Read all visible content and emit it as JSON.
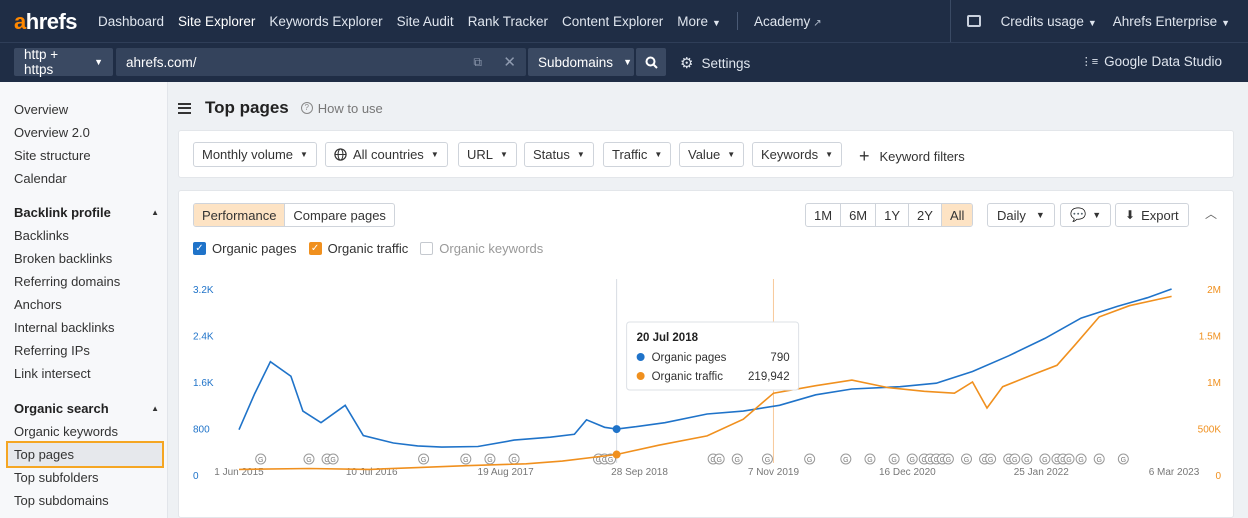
{
  "nav": {
    "logo_a": "a",
    "logo_rest": "hrefs",
    "links": [
      "Dashboard",
      "Site Explorer",
      "Keywords Explorer",
      "Site Audit",
      "Rank Tracker",
      "Content Explorer"
    ],
    "more": "More",
    "academy": "Academy",
    "credits": "Credits usage",
    "account": "Ahrefs Enterprise"
  },
  "urlbar": {
    "protocol": "http + https",
    "url": "ahrefs.com/",
    "mode": "Subdomains",
    "settings": "Settings",
    "gds": "Google Data Studio"
  },
  "sidebar": {
    "top": [
      "Overview",
      "Overview 2.0",
      "Site structure",
      "Calendar"
    ],
    "backlink_head": "Backlink profile",
    "backlink": [
      "Backlinks",
      "Broken backlinks",
      "Referring domains",
      "Anchors",
      "Internal backlinks",
      "Referring IPs",
      "Link intersect"
    ],
    "organic_head": "Organic search",
    "organic": [
      "Organic keywords",
      "Top pages",
      "Top subfolders",
      "Top subdomains"
    ]
  },
  "page": {
    "title": "Top pages",
    "howto": "How to use"
  },
  "filters": {
    "items": [
      "Monthly volume",
      "All countries",
      "URL",
      "Status",
      "Traffic",
      "Value",
      "Keywords"
    ],
    "keyword_filters": "Keyword filters"
  },
  "chart_controls": {
    "tabs": [
      "Performance",
      "Compare pages"
    ],
    "ranges": [
      "1M",
      "6M",
      "1Y",
      "2Y",
      "All"
    ],
    "interval": "Daily",
    "export": "Export",
    "legend": [
      "Organic pages",
      "Organic traffic",
      "Organic keywords"
    ]
  },
  "colors": {
    "blue": "#1f73c9",
    "orange": "#f0901e",
    "nav_bg": "#1f2d45",
    "highlight": "#f5a623"
  },
  "chart_data": {
    "type": "line",
    "x_labels": [
      "1 Jun 2015",
      "10 Jul 2016",
      "19 Aug 2017",
      "28 Sep 2018",
      "7 Nov 2019",
      "16 Dec 2020",
      "25 Jan 2022",
      "6 Mar 2023"
    ],
    "left_axis_ticks": [
      "0",
      "800",
      "1.6K",
      "2.4K",
      "3.2K"
    ],
    "right_axis_ticks": [
      "0",
      "500K",
      "1M",
      "1.5M",
      "2M"
    ],
    "left_ylim": [
      0,
      3200
    ],
    "right_ylim": [
      0,
      2000000
    ],
    "series": [
      {
        "name": "Organic pages",
        "axis": "left",
        "points": [
          [
            2015.42,
            780
          ],
          [
            2015.55,
            1400
          ],
          [
            2015.68,
            1950
          ],
          [
            2015.85,
            1700
          ],
          [
            2015.95,
            1100
          ],
          [
            2016.1,
            900
          ],
          [
            2016.3,
            1200
          ],
          [
            2016.45,
            680
          ],
          [
            2016.7,
            550
          ],
          [
            2016.9,
            500
          ],
          [
            2017.1,
            480
          ],
          [
            2017.4,
            490
          ],
          [
            2017.7,
            600
          ],
          [
            2018.0,
            650
          ],
          [
            2018.2,
            700
          ],
          [
            2018.3,
            950
          ],
          [
            2018.45,
            820
          ],
          [
            2018.55,
            790
          ],
          [
            2018.7,
            830
          ],
          [
            2018.95,
            900
          ],
          [
            2019.3,
            1050
          ],
          [
            2019.6,
            1100
          ],
          [
            2019.9,
            1200
          ],
          [
            2020.2,
            1380
          ],
          [
            2020.5,
            1480
          ],
          [
            2020.9,
            1520
          ],
          [
            2021.2,
            1580
          ],
          [
            2021.5,
            1780
          ],
          [
            2021.8,
            2050
          ],
          [
            2022.1,
            2350
          ],
          [
            2022.4,
            2700
          ],
          [
            2022.7,
            2900
          ],
          [
            2022.95,
            3050
          ],
          [
            2023.15,
            3200
          ]
        ]
      },
      {
        "name": "Organic traffic",
        "axis": "right",
        "points": [
          [
            2015.42,
            60000
          ],
          [
            2016.0,
            70000
          ],
          [
            2016.5,
            60000
          ],
          [
            2016.9,
            80000
          ],
          [
            2017.3,
            100000
          ],
          [
            2017.8,
            120000
          ],
          [
            2018.1,
            150000
          ],
          [
            2018.55,
            219942
          ],
          [
            2018.9,
            320000
          ],
          [
            2019.3,
            420000
          ],
          [
            2019.6,
            600000
          ],
          [
            2019.85,
            880000
          ],
          [
            2020.2,
            960000
          ],
          [
            2020.5,
            1020000
          ],
          [
            2020.8,
            940000
          ],
          [
            2021.1,
            900000
          ],
          [
            2021.35,
            880000
          ],
          [
            2021.5,
            1000000
          ],
          [
            2021.62,
            720000
          ],
          [
            2021.75,
            950000
          ],
          [
            2022.0,
            1080000
          ],
          [
            2022.2,
            1180000
          ],
          [
            2022.35,
            1400000
          ],
          [
            2022.55,
            1700000
          ],
          [
            2022.8,
            1820000
          ],
          [
            2023.15,
            1920000
          ]
        ]
      },
      {
        "name": "Organic keywords",
        "axis": "left",
        "points": []
      }
    ],
    "tooltip": {
      "date": "20 Jul 2018",
      "rows": [
        {
          "label": "Organic pages",
          "value": "790"
        },
        {
          "label": "Organic traffic",
          "value": "219,942"
        }
      ]
    }
  }
}
